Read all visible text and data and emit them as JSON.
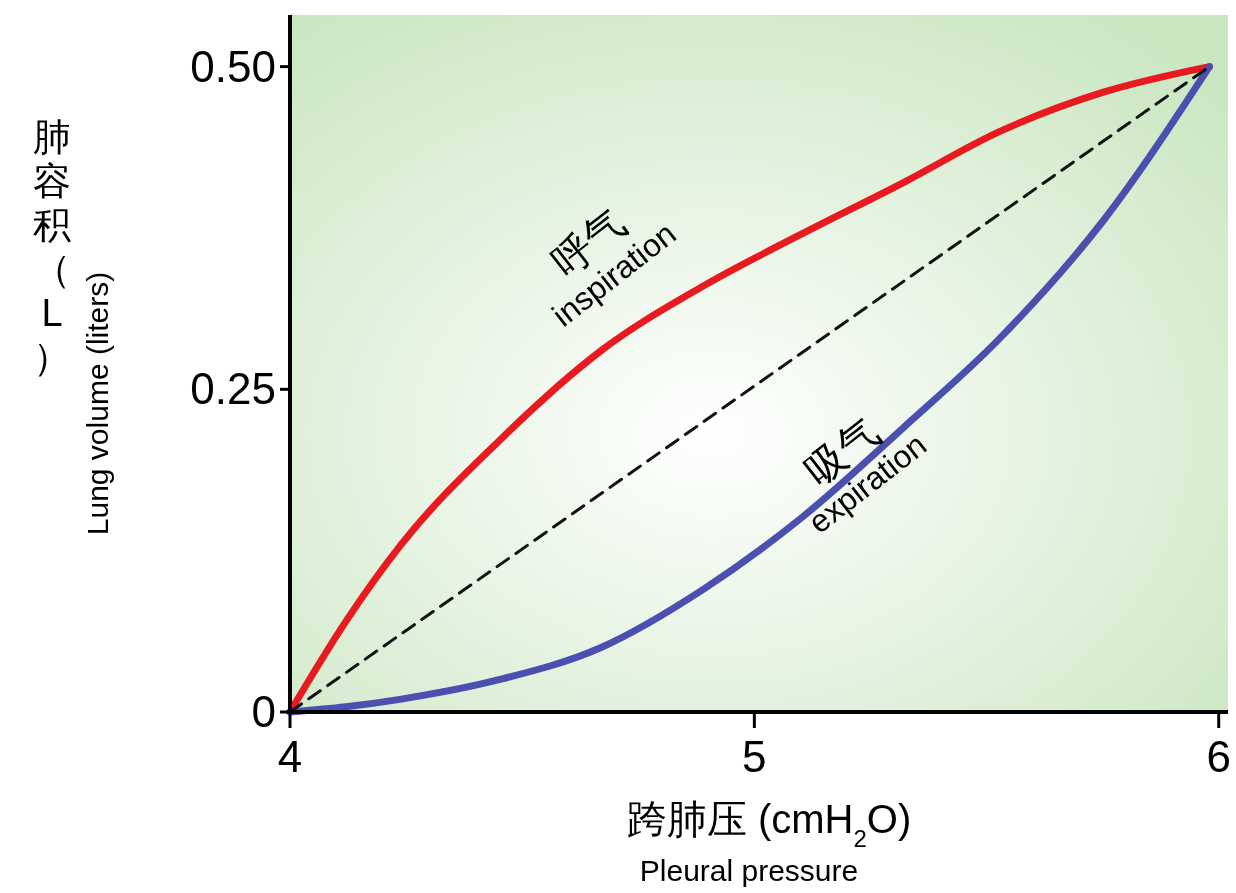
{
  "chart_data": {
    "type": "line",
    "xlabel": "跨肺压 (cmH$_{2}$O)\nPleural pressure",
    "ylabel": "肺容积（L）\nLung volume (liters)",
    "xlim": [
      4,
      6.02
    ],
    "ylim": [
      0,
      0.54
    ],
    "xticks": [
      4,
      5,
      6
    ],
    "yticks": [
      0,
      0.25,
      {
        "value": 0.5,
        "label": "0.50"
      }
    ],
    "grid": false,
    "annotations": [
      "呼气\ninspiration",
      "吸气\nexpiration"
    ],
    "series": [
      {
        "color": "#e8191f",
        "line_style": "solid",
        "x": [
          4,
          4.12,
          4.24,
          4.45,
          4.67,
          4.89,
          5.1,
          5.32,
          5.53,
          5.75,
          5.98
        ],
        "values": [
          0,
          0.07,
          0.13,
          0.21,
          0.28,
          0.33,
          0.37,
          0.41,
          0.45,
          0.48,
          0.5
        ]
      },
      {
        "color": "#4a4fb0",
        "line_style": "solid",
        "x": [
          4,
          4.12,
          4.24,
          4.45,
          4.67,
          4.89,
          5.1,
          5.32,
          5.53,
          5.75,
          5.98
        ],
        "values": [
          0,
          0.004,
          0.01,
          0.025,
          0.05,
          0.095,
          0.15,
          0.22,
          0.29,
          0.38,
          0.5
        ]
      },
      {
        "color": "#111111",
        "line_style": "dashed",
        "x": [
          4,
          5.98
        ],
        "values": [
          0,
          0.5
        ]
      }
    ]
  }
}
